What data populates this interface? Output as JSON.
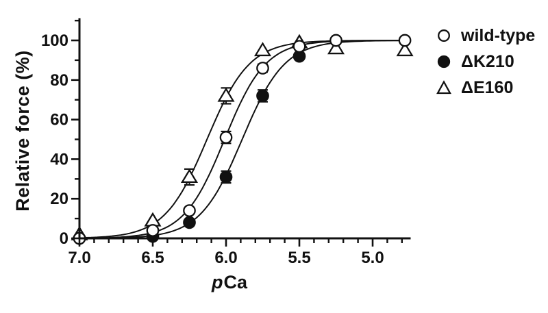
{
  "figure": {
    "background": "#ffffff",
    "ink_color": "#111111"
  },
  "chart_data": {
    "type": "scatter",
    "title": "",
    "ylabel": "Relative force (%)",
    "xlabel_italic": "p",
    "xlabel_text": "Ca",
    "ink": "#111111",
    "x_axis": {
      "label": "pCa",
      "reversed": true,
      "range_left": 7.0,
      "range_right": 4.74,
      "major_ticks": [
        7.0,
        6.5,
        6.0,
        5.5,
        5.0
      ],
      "major_tick_labels": [
        "7.0",
        "6.5",
        "6.0",
        "5.5",
        "5.0"
      ],
      "minor_tick_step": 0.1,
      "minor_tick_last": 4.8
    },
    "y_axis": {
      "label": "Relative force (%)",
      "min": 0,
      "max": 110,
      "major_ticks": [
        0,
        20,
        40,
        60,
        80,
        100
      ],
      "major_tick_labels": [
        "0",
        "20",
        "40",
        "60",
        "80",
        "100"
      ],
      "minor_ticks": [
        10,
        30,
        50,
        70,
        90,
        110
      ],
      "unit": "%"
    },
    "legend": {
      "position": "top-right",
      "order": [
        0,
        1,
        2
      ]
    },
    "series": [
      {
        "name": "wild-type",
        "marker": "open-circle",
        "line": "hill-sigmoid",
        "hill_fit": {
          "pCa50": 6.01,
          "hill_n": 3.1,
          "plateau": 100
        },
        "points": [
          {
            "pCa": 7.0,
            "force": 0,
            "err": 0
          },
          {
            "pCa": 6.5,
            "force": 4,
            "err": 0
          },
          {
            "pCa": 6.25,
            "force": 14,
            "err": 0
          },
          {
            "pCa": 6.0,
            "force": 51,
            "err": 3
          },
          {
            "pCa": 5.75,
            "force": 86,
            "err": 2
          },
          {
            "pCa": 5.5,
            "force": 97,
            "err": 0
          },
          {
            "pCa": 5.25,
            "force": 100,
            "err": 0
          },
          {
            "pCa": 4.78,
            "force": 100,
            "err": 0
          }
        ]
      },
      {
        "name": "ΔK210",
        "marker": "filled-circle",
        "line": "hill-sigmoid",
        "hill_fit": {
          "pCa50": 5.89,
          "hill_n": 3.0,
          "plateau": 100
        },
        "points": [
          {
            "pCa": 7.0,
            "force": 0,
            "err": 0
          },
          {
            "pCa": 6.5,
            "force": 1,
            "err": 0
          },
          {
            "pCa": 6.25,
            "force": 8,
            "err": 0
          },
          {
            "pCa": 6.0,
            "force": 31,
            "err": 3
          },
          {
            "pCa": 5.75,
            "force": 72,
            "err": 3
          },
          {
            "pCa": 5.5,
            "force": 92,
            "err": 0
          }
        ]
      },
      {
        "name": "ΔE160",
        "marker": "open-triangle",
        "line": "hill-sigmoid",
        "hill_fit": {
          "pCa50": 6.13,
          "hill_n": 3.0,
          "plateau": 100
        },
        "points": [
          {
            "pCa": 7.0,
            "force": 2,
            "err": 0
          },
          {
            "pCa": 6.5,
            "force": 9,
            "err": 0
          },
          {
            "pCa": 6.25,
            "force": 31,
            "err": 4
          },
          {
            "pCa": 6.0,
            "force": 72,
            "err": 4
          },
          {
            "pCa": 5.75,
            "force": 95,
            "err": 0
          },
          {
            "pCa": 5.5,
            "force": 99,
            "err": 0
          },
          {
            "pCa": 5.25,
            "force": 96,
            "err": 0
          },
          {
            "pCa": 4.78,
            "force": 95,
            "err": 0
          }
        ]
      }
    ]
  }
}
